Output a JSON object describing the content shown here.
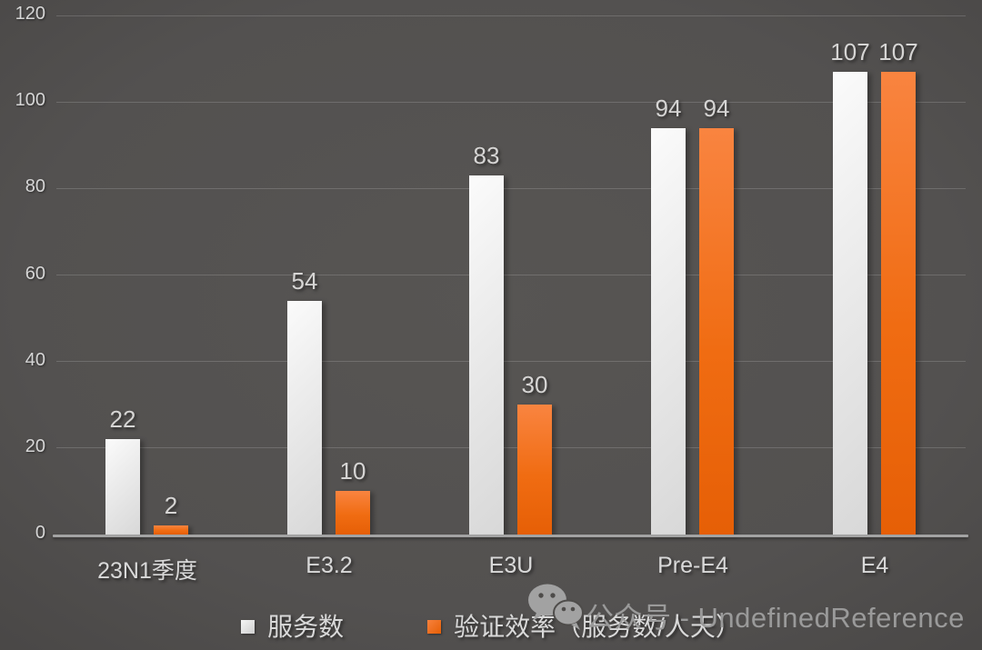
{
  "chart_data": {
    "type": "bar",
    "title": "",
    "xlabel": "",
    "ylabel": "",
    "categories": [
      "23N1季度",
      "E3.2",
      "E3U",
      "Pre-E4",
      "E4"
    ],
    "series": [
      {
        "name": "服务数",
        "color": "#d9d9d9",
        "values": [
          22,
          54,
          83,
          94,
          107
        ]
      },
      {
        "name": "验证效率（服务数/人天）",
        "color": "#ed6106",
        "values": [
          2,
          10,
          30,
          94,
          107
        ]
      }
    ],
    "ylim": [
      0,
      120
    ],
    "yticks": [
      0,
      20,
      40,
      60,
      80,
      100,
      120
    ],
    "grid": true,
    "legend_position": "bottom",
    "data_labels_shown": true
  },
  "legend": {
    "items": [
      {
        "label": "服务数",
        "color": "#d9d9d9"
      },
      {
        "label": "验证效率（服务数/人天）",
        "color": "#ed6106"
      }
    ]
  },
  "watermark": {
    "icon": "wechat-icon",
    "text": "公众号 - UndefinedReference"
  },
  "colors": {
    "background_center": "#555351",
    "background_corner": "#2f2d2b",
    "gridline": "#6b6b6b",
    "axis_line": "#a3a3a3",
    "text": "#d9d9d9",
    "series1": "#e8e8e8",
    "series2": "#ed6106"
  }
}
